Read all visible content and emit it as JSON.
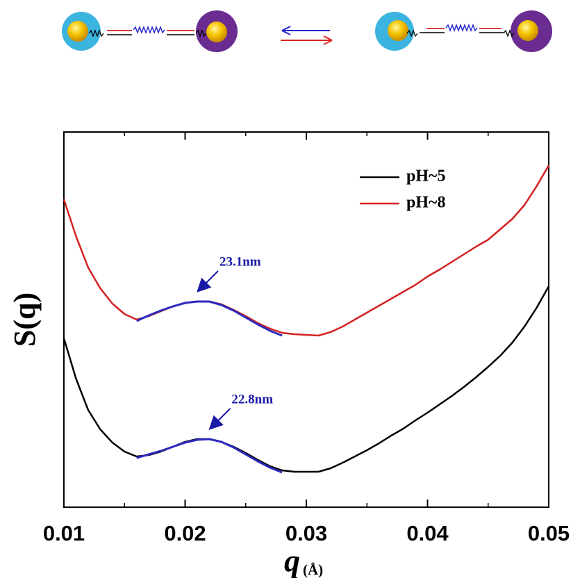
{
  "chart_data": {
    "type": "line",
    "y_label": "S(q)",
    "x_label": "q",
    "x_unit": "(Å)",
    "x": [
      0.01,
      0.011,
      0.012,
      0.013,
      0.014,
      0.015,
      0.016,
      0.017,
      0.018,
      0.019,
      0.02,
      0.021,
      0.022,
      0.023,
      0.024,
      0.025,
      0.026,
      0.027,
      0.028,
      0.029,
      0.03,
      0.031,
      0.032,
      0.033,
      0.034,
      0.035,
      0.036,
      0.037,
      0.038,
      0.039,
      0.04,
      0.041,
      0.042,
      0.043,
      0.044,
      0.045,
      0.046,
      0.047,
      0.048,
      0.049,
      0.05
    ],
    "series": [
      {
        "name": "pH~5",
        "color": "#000000",
        "values": [
          243,
          185,
          140,
          112,
          93,
          80,
          73,
          75,
          80,
          87,
          94,
          98,
          98,
          94,
          87,
          78,
          68,
          59,
          53,
          51,
          51,
          51,
          56,
          64,
          73,
          82,
          92,
          103,
          113,
          125,
          136,
          148,
          160,
          173,
          187,
          202,
          218,
          237,
          260,
          287,
          318
        ]
      },
      {
        "name": "pH~8",
        "color": "#d42020",
        "values": [
          443,
          390,
          345,
          315,
          293,
          278,
          270,
          275,
          282,
          289,
          294,
          296,
          296,
          292,
          284,
          275,
          265,
          257,
          251,
          249,
          248,
          247,
          252,
          260,
          270,
          280,
          290,
          300,
          310,
          320,
          332,
          342,
          353,
          364,
          375,
          385,
          400,
          415,
          435,
          462,
          492
        ]
      }
    ],
    "fits": [
      {
        "color": "#2b2bc0",
        "x": [
          0.016,
          0.017,
          0.018,
          0.019,
          0.02,
          0.021,
          0.022,
          0.023,
          0.024,
          0.025,
          0.026,
          0.027,
          0.028
        ],
        "values": [
          268,
          276,
          283,
          289,
          294,
          296,
          296,
          291,
          283,
          273,
          263,
          254,
          247
        ]
      },
      {
        "color": "#2b2bc0",
        "x": [
          0.016,
          0.017,
          0.018,
          0.019,
          0.02,
          0.021,
          0.022,
          0.023,
          0.024,
          0.025,
          0.026,
          0.027,
          0.028
        ],
        "values": [
          71,
          76,
          81,
          87,
          93,
          97,
          98,
          94,
          86,
          76,
          66,
          57,
          50
        ]
      }
    ],
    "annotations": [
      "23.1nm",
      "22.8nm"
    ],
    "xlim": [
      0.01,
      0.05
    ],
    "xticks": [
      0.01,
      0.02,
      0.03,
      0.04,
      0.05
    ],
    "ylim": [
      0,
      540
    ],
    "legend": "upper right"
  }
}
